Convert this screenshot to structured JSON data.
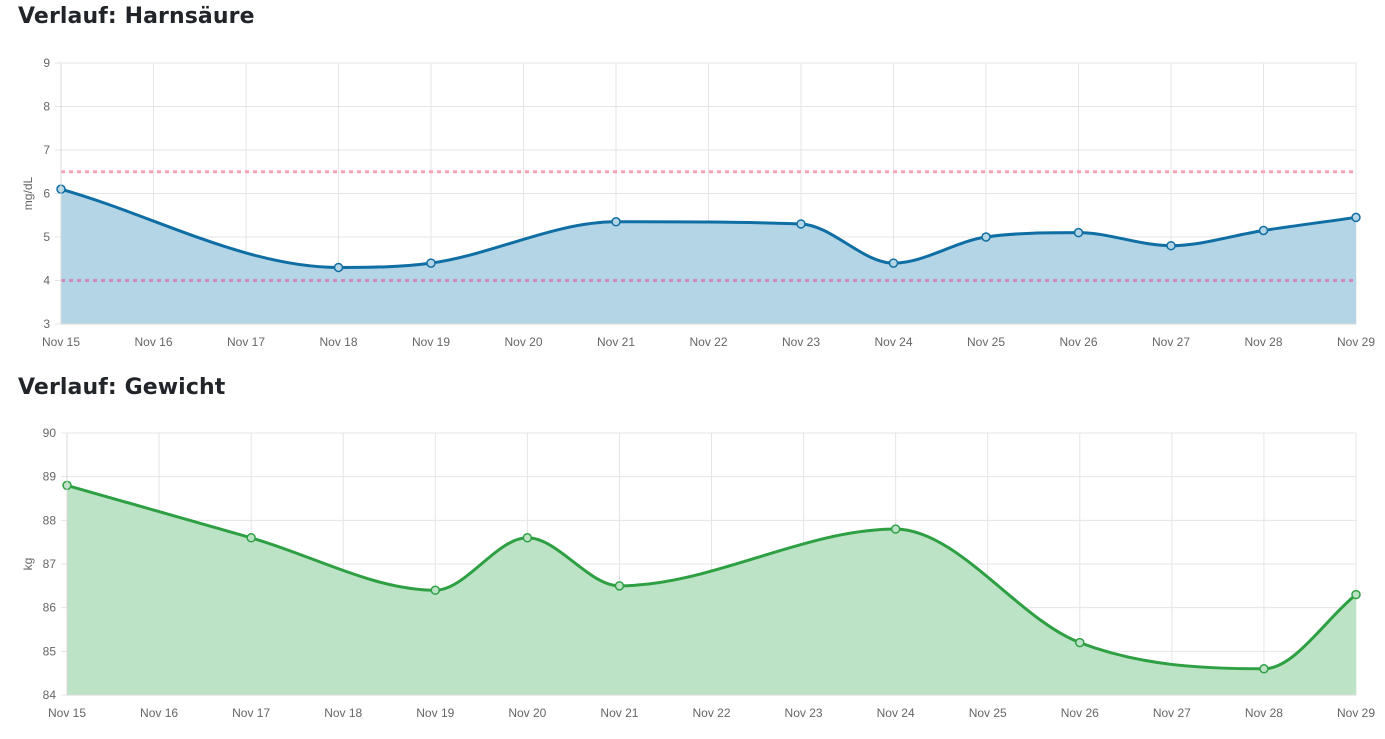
{
  "chart_data": [
    {
      "type": "area",
      "title": "Verlauf: Harnsäure",
      "ylabel": "mg/dL",
      "ylim": [
        3,
        9
      ],
      "y_ticks": [
        "3",
        "4",
        "5",
        "6",
        "7",
        "8",
        "9"
      ],
      "categories": [
        "Nov 15",
        "Nov 16",
        "Nov 17",
        "Nov 18",
        "Nov 19",
        "Nov 20",
        "Nov 21",
        "Nov 22",
        "Nov 23",
        "Nov 24",
        "Nov 25",
        "Nov 26",
        "Nov 27",
        "Nov 28",
        "Nov 29"
      ],
      "series": [
        {
          "x": [
            "Nov 15",
            "Nov 18",
            "Nov 19",
            "Nov 21",
            "Nov 23",
            "Nov 24",
            "Nov 25",
            "Nov 26",
            "Nov 27",
            "Nov 28",
            "Nov 29"
          ],
          "values": [
            6.1,
            4.3,
            4.4,
            5.35,
            5.3,
            4.4,
            5.0,
            5.1,
            4.8,
            5.15,
            5.45
          ],
          "color": "#0f6ea3",
          "fill": "#b3d5e6"
        }
      ],
      "reference_lines": [
        {
          "value": 6.5,
          "color": "#f7a1b7"
        },
        {
          "value": 4.0,
          "color": "#d08ab8"
        }
      ],
      "grid": true,
      "legend": "none"
    },
    {
      "type": "area",
      "title": "Verlauf: Gewicht",
      "ylabel": "kg",
      "ylim": [
        84,
        90
      ],
      "y_ticks": [
        "84",
        "85",
        "86",
        "87",
        "88",
        "89",
        "90"
      ],
      "categories": [
        "Nov 15",
        "Nov 16",
        "Nov 17",
        "Nov 18",
        "Nov 19",
        "Nov 20",
        "Nov 21",
        "Nov 22",
        "Nov 23",
        "Nov 24",
        "Nov 25",
        "Nov 26",
        "Nov 27",
        "Nov 28",
        "Nov 29"
      ],
      "series": [
        {
          "x": [
            "Nov 15",
            "Nov 17",
            "Nov 19",
            "Nov 20",
            "Nov 21",
            "Nov 24",
            "Nov 26",
            "Nov 28",
            "Nov 29"
          ],
          "values": [
            88.8,
            87.6,
            86.4,
            87.6,
            86.5,
            87.8,
            85.2,
            84.6,
            86.3
          ],
          "color": "#2ea043",
          "fill": "#bde3c6"
        }
      ],
      "reference_lines": [],
      "grid": true,
      "legend": "none"
    }
  ]
}
